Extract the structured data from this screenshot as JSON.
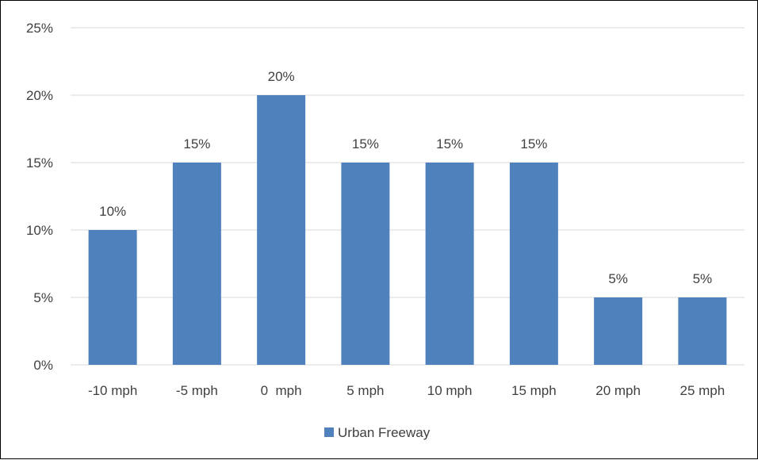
{
  "chart_data": {
    "type": "bar",
    "title": "",
    "xlabel": "",
    "ylabel": "",
    "categories": [
      "-10 mph",
      "-5 mph",
      "0  mph",
      "5 mph",
      "10 mph",
      "15 mph",
      "20 mph",
      "25 mph"
    ],
    "series": [
      {
        "name": "Urban Freeway",
        "values": [
          10,
          15,
          20,
          15,
          15,
          15,
          5,
          5
        ],
        "labels": [
          "10%",
          "15%",
          "20%",
          "15%",
          "15%",
          "15%",
          "5%",
          "5%"
        ],
        "color": "#4F81BD"
      }
    ],
    "ylim": [
      0,
      25
    ],
    "y_ticks": [
      "0%",
      "5%",
      "10%",
      "15%",
      "20%",
      "25%"
    ],
    "grid": true,
    "legend_position": "bottom",
    "colors": {
      "gridline": "#D9D9D9",
      "text": "#404040"
    }
  }
}
